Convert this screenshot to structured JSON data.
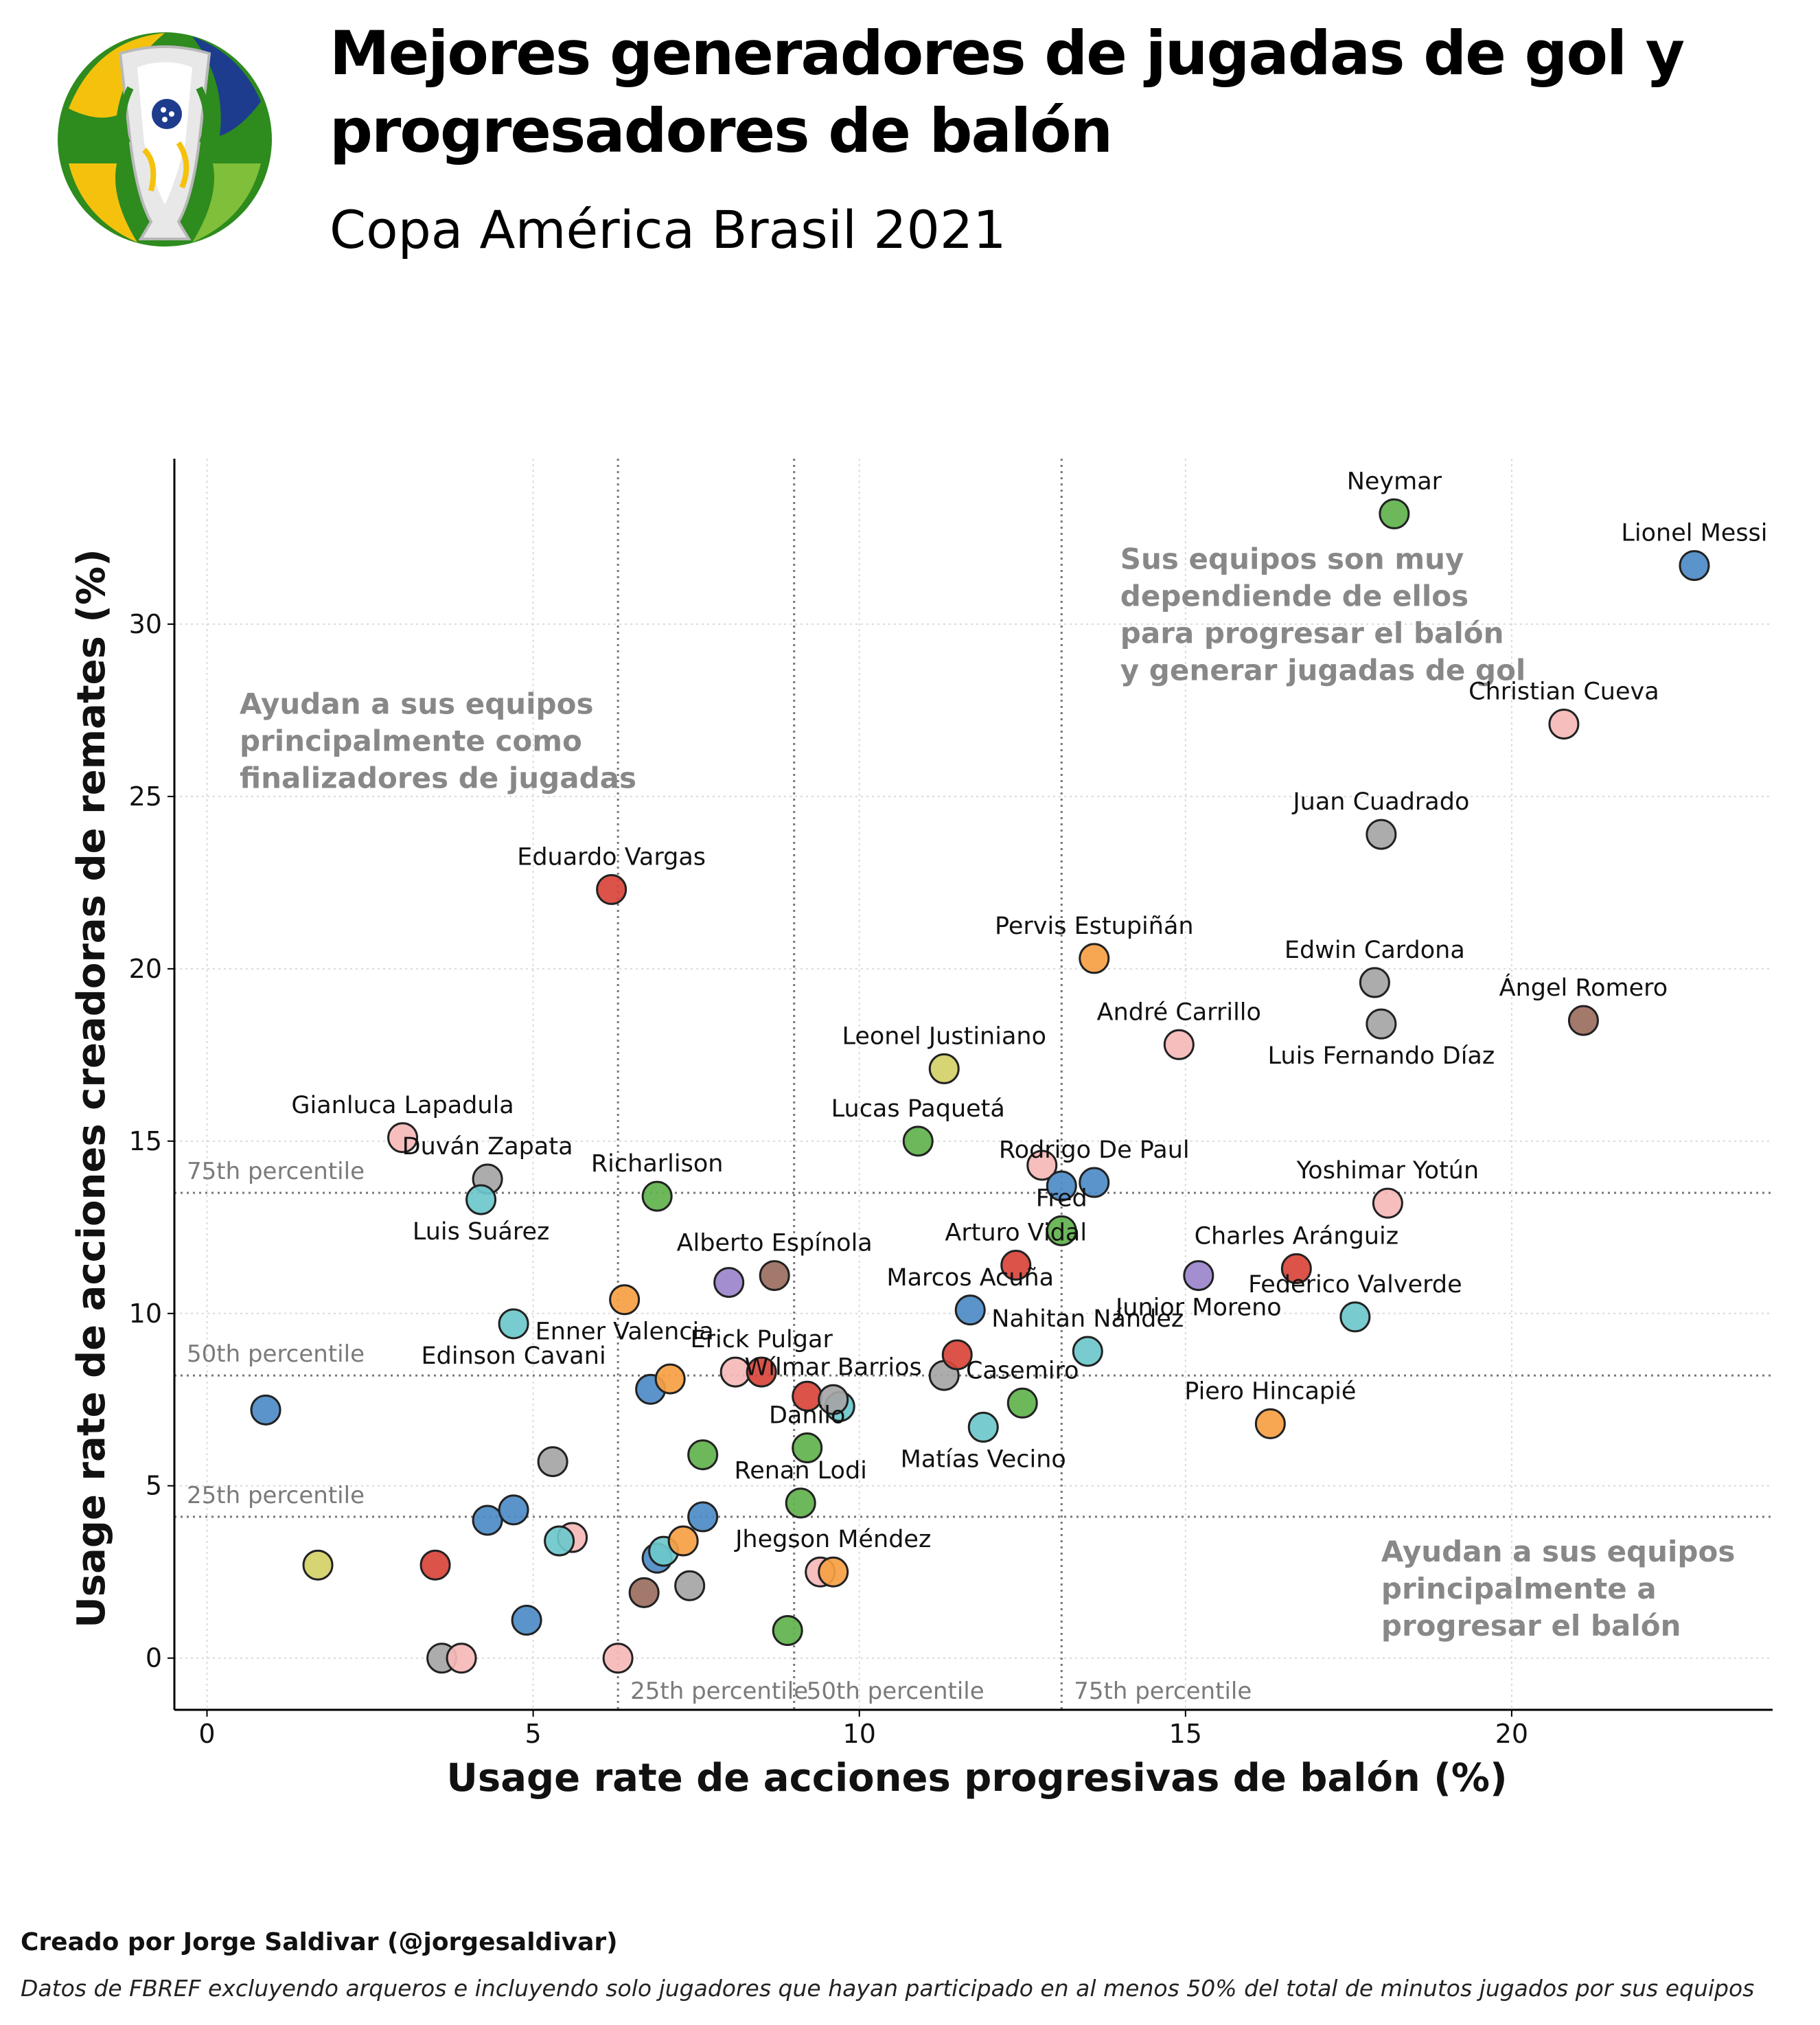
{
  "header": {
    "title_line1": "Mejores generadores de jugadas de gol y",
    "title_line2": "progresadores de balón",
    "subtitle": "Copa América Brasil 2021"
  },
  "footer": {
    "credit": "Creado por Jorge Saldivar (@jorgesaldivar)",
    "source": "Datos de FBREF excluyendo arqueros e incluyendo solo jugadores que hayan participado en al menos 50% del total de minutos jugados por sus equipos"
  },
  "logo": {
    "icon": "copa-america-trophy-logo"
  },
  "chart_data": {
    "type": "scatter",
    "xlabel": "Usage rate de acciones progresivas de balón (%)",
    "ylabel": "Usage rate de acciones creadoras de remates (%)",
    "xlim": [
      -0.5,
      24
    ],
    "ylim": [
      -1.5,
      34.8
    ],
    "xticks": [
      "0",
      "5",
      "10",
      "15",
      "20"
    ],
    "yticks": [
      "0",
      "5",
      "10",
      "15",
      "20",
      "25",
      "30"
    ],
    "grid": true,
    "percentiles": {
      "x": [
        {
          "label": "25th percentile",
          "value": 6.3
        },
        {
          "label": "50th percentile",
          "value": 9.0
        },
        {
          "label": "75th percentile",
          "value": 13.1
        }
      ],
      "y": [
        {
          "label": "25th percentile",
          "value": 4.1
        },
        {
          "label": "50th percentile",
          "value": 8.2
        },
        {
          "label": "75th percentile",
          "value": 13.5
        }
      ]
    },
    "annotations": [
      {
        "text": [
          "Sus equipos son muy",
          "dependiende de ellos",
          "para progresar el balón",
          "y generar jugadas de gol"
        ],
        "x": 14.0,
        "y": 31.6
      },
      {
        "text": [
          "Ayudan a sus equipos",
          "principalmente como",
          "finalizadores de jugadas"
        ],
        "x": 0.5,
        "y": 27.4
      },
      {
        "text": [
          "Ayudan a sus equipos",
          "principalmente a",
          "progresar el balón"
        ],
        "x": 18.0,
        "y": 2.8
      }
    ],
    "team_colors": {
      "arg": "#4c8bc6",
      "bra": "#5fb24c",
      "per": "#f6b8b8",
      "col": "#a5a5a5",
      "par": "#9b6e60",
      "chi": "#d9443a",
      "uru": "#6cc8cc",
      "ecu": "#f6a043",
      "ven": "#9b86cc",
      "bol": "#d3d067"
    },
    "points": [
      {
        "name": "Neymar",
        "x": 18.2,
        "y": 33.2,
        "team": "bra",
        "label": "top"
      },
      {
        "name": "Lionel Messi",
        "x": 22.8,
        "y": 31.7,
        "team": "arg",
        "label": "top"
      },
      {
        "name": "Christian Cueva",
        "x": 20.8,
        "y": 27.1,
        "team": "per",
        "label": "top"
      },
      {
        "name": "Juan Cuadrado",
        "x": 18.0,
        "y": 23.9,
        "team": "col",
        "label": "top"
      },
      {
        "name": "Eduardo Vargas",
        "x": 6.2,
        "y": 22.3,
        "team": "chi",
        "label": "top"
      },
      {
        "name": "Pervis Estupiñán",
        "x": 13.6,
        "y": 20.3,
        "team": "ecu",
        "label": "top"
      },
      {
        "name": "Edwin Cardona",
        "x": 17.9,
        "y": 19.6,
        "team": "col",
        "label": "top"
      },
      {
        "name": "Ángel Romero",
        "x": 21.1,
        "y": 18.5,
        "team": "par",
        "label": "top"
      },
      {
        "name": "André Carrillo",
        "x": 14.9,
        "y": 17.8,
        "team": "per",
        "label": "top"
      },
      {
        "name": "Luis Fernando Díaz",
        "x": 18.0,
        "y": 18.4,
        "team": "col",
        "label": "bottom"
      },
      {
        "name": "Leonel Justiniano",
        "x": 11.3,
        "y": 17.1,
        "team": "bol",
        "label": "top"
      },
      {
        "name": "Lucas Paquetá",
        "x": 10.9,
        "y": 15.0,
        "team": "bra",
        "label": "top"
      },
      {
        "name": "Gianluca Lapadula",
        "x": 3.0,
        "y": 15.1,
        "team": "per",
        "label": "top"
      },
      {
        "name": "Duván Zapata",
        "x": 4.3,
        "y": 13.9,
        "team": "col",
        "label": "top"
      },
      {
        "name": "Luis Suárez",
        "x": 4.2,
        "y": 13.3,
        "team": "uru",
        "label": "bottom"
      },
      {
        "name": "Richarlison",
        "x": 6.9,
        "y": 13.4,
        "team": "bra",
        "label": "top"
      },
      {
        "name": "Rodrigo De Paul",
        "x": 13.6,
        "y": 13.8,
        "team": "arg",
        "label": "top"
      },
      {
        "name": "Yoshimar Yotún",
        "x": 18.1,
        "y": 13.2,
        "team": "per",
        "label": "top"
      },
      {
        "name": "Fred",
        "x": 13.1,
        "y": 12.4,
        "team": "bra",
        "label": "top"
      },
      {
        "name": "Arturo Vidal",
        "x": 12.4,
        "y": 11.4,
        "team": "chi",
        "label": "top"
      },
      {
        "name": "Alberto Espínola",
        "x": 8.7,
        "y": 11.1,
        "team": "par",
        "label": "top"
      },
      {
        "name": "Charles Aránguiz",
        "x": 16.7,
        "y": 11.3,
        "team": "chi",
        "label": "top"
      },
      {
        "name": "Junior Moreno",
        "x": 15.2,
        "y": 11.1,
        "team": "ven",
        "label": "bottom"
      },
      {
        "name": "Marcos Acuña",
        "x": 11.7,
        "y": 10.1,
        "team": "arg",
        "label": "top"
      },
      {
        "name": "Federico Valverde",
        "x": 17.6,
        "y": 9.9,
        "team": "uru",
        "label": "top"
      },
      {
        "name": "Enner Valencia",
        "x": 6.4,
        "y": 10.4,
        "team": "ecu",
        "label": "bottom"
      },
      {
        "name": "Edinson Cavani",
        "x": 4.7,
        "y": 9.7,
        "team": "uru",
        "label": "bottom"
      },
      {
        "name": "Nahitan Nández",
        "x": 13.5,
        "y": 8.9,
        "team": "uru",
        "label": "top"
      },
      {
        "name": "Erick Pulgar",
        "x": 8.5,
        "y": 8.3,
        "team": "chi",
        "label": "top"
      },
      {
        "name": "Wílmar Barrios",
        "x": 9.6,
        "y": 7.5,
        "team": "col",
        "label": "top"
      },
      {
        "name": "Casemiro",
        "x": 12.5,
        "y": 7.4,
        "team": "bra",
        "label": "top"
      },
      {
        "name": "Piero Hincapié",
        "x": 16.3,
        "y": 6.8,
        "team": "ecu",
        "label": "top"
      },
      {
        "name": "Danilo",
        "x": 9.2,
        "y": 6.1,
        "team": "bra",
        "label": "top"
      },
      {
        "name": "Matías Vecino",
        "x": 11.9,
        "y": 6.7,
        "team": "uru",
        "label": "bottom"
      },
      {
        "name": "Renan Lodi",
        "x": 9.1,
        "y": 4.5,
        "team": "bra",
        "label": "top"
      },
      {
        "name": "Jhegson Méndez",
        "x": 9.6,
        "y": 2.5,
        "team": "ecu",
        "label": "top"
      },
      {
        "name": "",
        "x": 0.9,
        "y": 7.2,
        "team": "arg"
      },
      {
        "name": "",
        "x": 1.7,
        "y": 2.7,
        "team": "bol"
      },
      {
        "name": "",
        "x": 3.6,
        "y": 0.0,
        "team": "col"
      },
      {
        "name": "",
        "x": 3.9,
        "y": 0.0,
        "team": "per"
      },
      {
        "name": "",
        "x": 3.5,
        "y": 2.7,
        "team": "chi"
      },
      {
        "name": "",
        "x": 4.3,
        "y": 4.0,
        "team": "arg"
      },
      {
        "name": "",
        "x": 4.7,
        "y": 4.3,
        "team": "arg"
      },
      {
        "name": "",
        "x": 4.9,
        "y": 1.1,
        "team": "arg"
      },
      {
        "name": "",
        "x": 5.3,
        "y": 5.7,
        "team": "col"
      },
      {
        "name": "",
        "x": 5.6,
        "y": 3.5,
        "team": "per"
      },
      {
        "name": "",
        "x": 5.4,
        "y": 3.4,
        "team": "uru"
      },
      {
        "name": "",
        "x": 6.3,
        "y": 0.0,
        "team": "per"
      },
      {
        "name": "",
        "x": 6.7,
        "y": 1.9,
        "team": "par"
      },
      {
        "name": "",
        "x": 6.8,
        "y": 7.8,
        "team": "arg"
      },
      {
        "name": "",
        "x": 7.1,
        "y": 8.1,
        "team": "ecu"
      },
      {
        "name": "",
        "x": 6.9,
        "y": 2.9,
        "team": "arg"
      },
      {
        "name": "",
        "x": 7.0,
        "y": 3.1,
        "team": "uru"
      },
      {
        "name": "",
        "x": 7.3,
        "y": 3.4,
        "team": "ecu"
      },
      {
        "name": "",
        "x": 7.4,
        "y": 2.1,
        "team": "col"
      },
      {
        "name": "",
        "x": 7.6,
        "y": 4.1,
        "team": "arg"
      },
      {
        "name": "",
        "x": 7.6,
        "y": 5.9,
        "team": "bra"
      },
      {
        "name": "",
        "x": 8.0,
        "y": 10.9,
        "team": "ven"
      },
      {
        "name": "",
        "x": 8.1,
        "y": 8.3,
        "team": "per"
      },
      {
        "name": "",
        "x": 8.9,
        "y": 0.8,
        "team": "bra"
      },
      {
        "name": "",
        "x": 9.2,
        "y": 7.6,
        "team": "chi"
      },
      {
        "name": "",
        "x": 9.4,
        "y": 2.5,
        "team": "per"
      },
      {
        "name": "",
        "x": 9.7,
        "y": 7.3,
        "team": "uru"
      },
      {
        "name": "",
        "x": 11.3,
        "y": 8.2,
        "team": "col"
      },
      {
        "name": "",
        "x": 11.5,
        "y": 8.8,
        "team": "chi"
      },
      {
        "name": "",
        "x": 12.8,
        "y": 14.3,
        "team": "per"
      },
      {
        "name": "",
        "x": 13.1,
        "y": 13.7,
        "team": "arg"
      }
    ]
  }
}
